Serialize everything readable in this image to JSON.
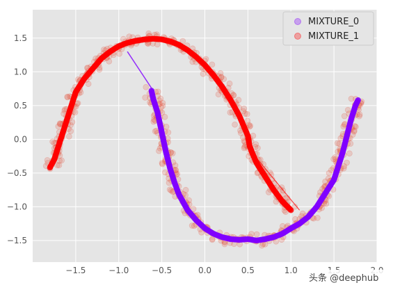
{
  "chart_data": {
    "type": "scatter",
    "title": "",
    "xlabel": "",
    "ylabel": "",
    "xlim": [
      -2.0,
      2.0
    ],
    "ylim": [
      -1.82,
      1.92
    ],
    "x_ticks": [
      -1.5,
      -1.0,
      -0.5,
      0.0,
      0.5,
      1.0,
      1.5,
      2.0
    ],
    "x_tick_labels": [
      "−1.5",
      "−1.0",
      "−0.5",
      "0.0",
      "0.5",
      "1.0",
      "1.5",
      "2.0"
    ],
    "y_ticks": [
      -1.5,
      -1.0,
      -0.5,
      0.0,
      0.5,
      1.0,
      1.5
    ],
    "y_tick_labels": [
      "−1.5",
      "−1.0",
      "−0.5",
      "0.0",
      "0.5",
      "1.0",
      "1.5"
    ],
    "grid": true,
    "legend_position": "top-right",
    "series": [
      {
        "name": "MIXTURE_0",
        "color": "#8000ff",
        "points": [
          [
            -0.62,
            0.72
          ],
          [
            -0.6,
            0.6
          ],
          [
            -0.55,
            0.4
          ],
          [
            -0.5,
            0.1
          ],
          [
            -0.45,
            -0.2
          ],
          [
            -0.4,
            -0.45
          ],
          [
            -0.35,
            -0.65
          ],
          [
            -0.3,
            -0.82
          ],
          [
            -0.2,
            -1.05
          ],
          [
            -0.1,
            -1.2
          ],
          [
            0.0,
            -1.32
          ],
          [
            0.1,
            -1.4
          ],
          [
            0.2,
            -1.45
          ],
          [
            0.3,
            -1.48
          ],
          [
            0.4,
            -1.49
          ],
          [
            0.5,
            -1.48
          ],
          [
            0.6,
            -1.5
          ],
          [
            0.7,
            -1.48
          ],
          [
            0.8,
            -1.45
          ],
          [
            0.9,
            -1.4
          ],
          [
            1.0,
            -1.32
          ],
          [
            1.1,
            -1.25
          ],
          [
            1.2,
            -1.15
          ],
          [
            1.3,
            -1.0
          ],
          [
            1.4,
            -0.8
          ],
          [
            1.5,
            -0.6
          ],
          [
            1.55,
            -0.4
          ],
          [
            1.6,
            -0.2
          ],
          [
            1.65,
            0.05
          ],
          [
            1.7,
            0.3
          ],
          [
            1.75,
            0.5
          ],
          [
            1.78,
            0.58
          ]
        ]
      },
      {
        "name": "MIXTURE_1",
        "color": "#ff0000",
        "points": [
          [
            -1.8,
            -0.42
          ],
          [
            -1.75,
            -0.3
          ],
          [
            -1.7,
            -0.1
          ],
          [
            -1.65,
            0.1
          ],
          [
            -1.6,
            0.3
          ],
          [
            -1.55,
            0.5
          ],
          [
            -1.5,
            0.7
          ],
          [
            -1.4,
            0.9
          ],
          [
            -1.3,
            1.05
          ],
          [
            -1.2,
            1.2
          ],
          [
            -1.1,
            1.3
          ],
          [
            -1.0,
            1.38
          ],
          [
            -0.9,
            1.43
          ],
          [
            -0.8,
            1.46
          ],
          [
            -0.7,
            1.48
          ],
          [
            -0.6,
            1.49
          ],
          [
            -0.5,
            1.48
          ],
          [
            -0.4,
            1.45
          ],
          [
            -0.3,
            1.4
          ],
          [
            -0.2,
            1.32
          ],
          [
            -0.1,
            1.22
          ],
          [
            0.0,
            1.1
          ],
          [
            0.1,
            0.95
          ],
          [
            0.2,
            0.78
          ],
          [
            0.3,
            0.58
          ],
          [
            0.4,
            0.35
          ],
          [
            0.45,
            0.2
          ],
          [
            0.5,
            0.05
          ],
          [
            0.52,
            -0.1
          ],
          [
            0.55,
            -0.2
          ],
          [
            0.6,
            -0.35
          ],
          [
            0.7,
            -0.55
          ],
          [
            0.8,
            -0.75
          ],
          [
            0.9,
            -0.92
          ],
          [
            1.0,
            -1.05
          ]
        ]
      }
    ],
    "connector_stroke": {
      "from": [
        -0.6,
        0.72
      ],
      "to": [
        -0.9,
        1.3
      ],
      "color": "#8000ff"
    }
  },
  "watermark": "头条 @deephub"
}
